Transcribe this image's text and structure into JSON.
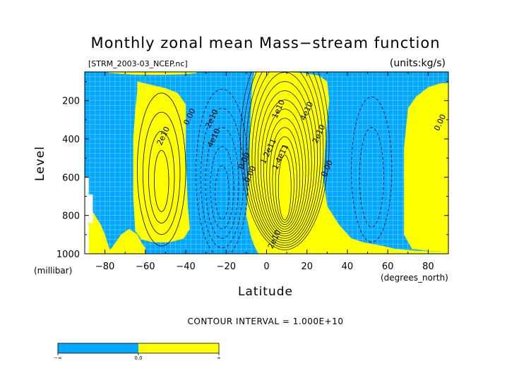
{
  "chart_data": {
    "type": "heatmap",
    "title": "Monthly zonal mean Mass−stream function",
    "subtitle_left": "[STRM_2003-03_NCEP.nc]",
    "units_label": "(units:kg/s)",
    "xlabel": "Latitude",
    "x_unit_label": "(degrees_north)",
    "ylabel": "Level",
    "y_unit_label": "(millibar)",
    "footer": "CONTOUR INTERVAL = 1.000E+10",
    "xlim": [
      -90,
      90
    ],
    "ylim": [
      1000,
      50
    ],
    "x_ticks": [
      -80,
      -60,
      -40,
      -20,
      0,
      20,
      40,
      60,
      80
    ],
    "x_tick_labels": [
      "−80",
      "−60",
      "−40",
      "−20",
      "0",
      "20",
      "40",
      "60",
      "80"
    ],
    "y_ticks": [
      200,
      400,
      600,
      800,
      1000
    ],
    "y_tick_labels": [
      "200",
      "400",
      "600",
      "800",
      "1000"
    ],
    "contour_interval": 10000000000,
    "colors": {
      "positive": "#ffff00",
      "negative": "#00a9ff",
      "missing": "#ffffff",
      "contour": "#000000"
    },
    "colorbar": {
      "labels": [
        "−∞",
        "0.0",
        "∞"
      ],
      "segments": [
        {
          "from": "−∞",
          "to": "0.0",
          "color": "#00a9ff"
        },
        {
          "from": "0.0",
          "to": "∞",
          "color": "#ffff00"
        }
      ]
    },
    "contour_labels": [
      {
        "text": "2e10",
        "lat": -50,
        "lev": 390
      },
      {
        "text": "0.00",
        "lat": -37,
        "lev": 290
      },
      {
        "text": "2e10",
        "lat": -26,
        "lev": 300
      },
      {
        "text": "4e10",
        "lat": -25,
        "lev": 400
      },
      {
        "text": "0.00",
        "lat": -10,
        "lev": 520
      },
      {
        "text": "0.00",
        "lat": -7,
        "lev": 590
      },
      {
        "text": "1.2e11",
        "lat": 2,
        "lev": 470
      },
      {
        "text": "1.4e11",
        "lat": 8,
        "lev": 500
      },
      {
        "text": "1e10",
        "lat": 7,
        "lev": 250
      },
      {
        "text": "4e10",
        "lat": 21,
        "lev": 260
      },
      {
        "text": "2e10",
        "lat": 27,
        "lev": 380
      },
      {
        "text": "0.00",
        "lat": 31,
        "lev": 560
      },
      {
        "text": "2e10",
        "lat": 5,
        "lev": 930
      },
      {
        "text": "0.00",
        "lat": 87,
        "lev": 320
      }
    ]
  }
}
